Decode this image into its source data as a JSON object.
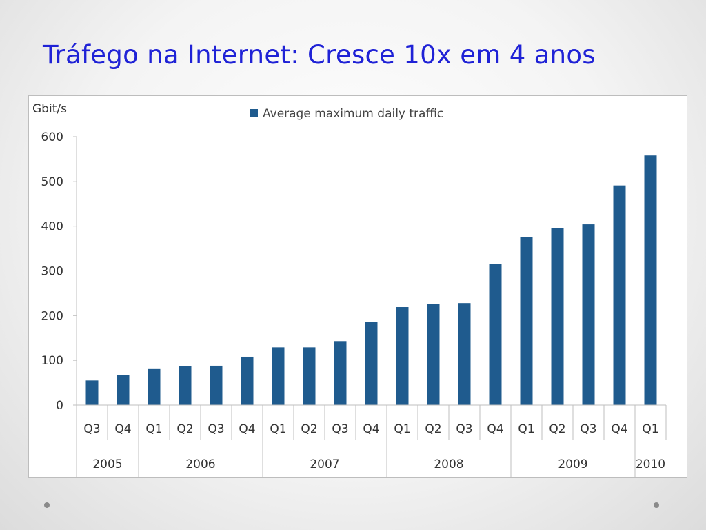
{
  "slide": {
    "title": "Tráfego na Internet: Cresce 10x em 4 anos"
  },
  "colors": {
    "title": "#1f22d6",
    "bar": "#1f5b8e",
    "axis": "#bfbfbf",
    "text": "#333333"
  },
  "chart_data": {
    "type": "bar",
    "title": "",
    "ylabel": "Gbit/s",
    "xlabel": "",
    "ylim": [
      0,
      600
    ],
    "yticks": [
      0,
      100,
      200,
      300,
      400,
      500,
      600
    ],
    "grid": false,
    "legend": "top",
    "categories": [
      "Q3",
      "Q4",
      "Q1",
      "Q2",
      "Q3",
      "Q4",
      "Q1",
      "Q2",
      "Q3",
      "Q4",
      "Q1",
      "Q2",
      "Q3",
      "Q4",
      "Q1",
      "Q2",
      "Q3",
      "Q4",
      "Q1"
    ],
    "year_groups": [
      {
        "label": "2005",
        "count": 2
      },
      {
        "label": "2006",
        "count": 4
      },
      {
        "label": "2007",
        "count": 4
      },
      {
        "label": "2008",
        "count": 4
      },
      {
        "label": "2009",
        "count": 4
      },
      {
        "label": "2010",
        "count": 1
      }
    ],
    "series": [
      {
        "name": "Average maximum daily traffic",
        "values": [
          55,
          67,
          82,
          87,
          88,
          108,
          129,
          129,
          143,
          186,
          219,
          226,
          228,
          316,
          375,
          395,
          404,
          491,
          558
        ]
      }
    ]
  }
}
